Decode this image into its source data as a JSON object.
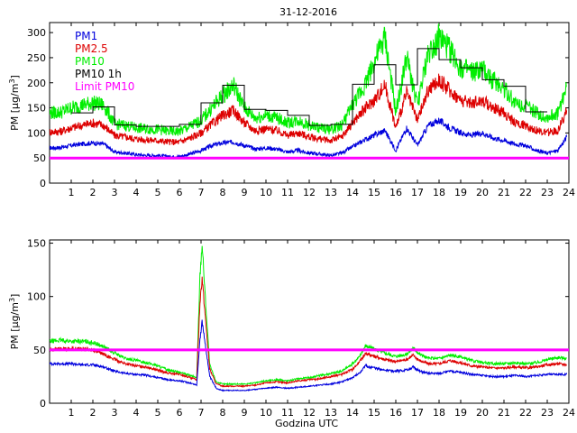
{
  "chart_data": [
    {
      "type": "line",
      "title": "31-12-2016",
      "ylabel": "PM [µg/m",
      "ylabel_sup": "3",
      "ylabel_end": "]",
      "xlabel": "",
      "xlim": [
        0,
        24
      ],
      "ylim": [
        0,
        320
      ],
      "yticks": [
        0,
        50,
        100,
        150,
        200,
        250,
        300
      ],
      "xticks": [
        1,
        2,
        3,
        4,
        5,
        6,
        7,
        8,
        9,
        10,
        11,
        12,
        13,
        14,
        15,
        16,
        17,
        18,
        19,
        20,
        21,
        22,
        23,
        24
      ],
      "legend": [
        {
          "label": "PM1",
          "color": "#0000dd"
        },
        {
          "label": "PM2.5",
          "color": "#dd0000"
        },
        {
          "label": "PM10",
          "color": "#00ee00"
        },
        {
          "label": "PM10 1h",
          "color": "#000000"
        },
        {
          "label": "Limit PM10",
          "color": "#ff00ff"
        }
      ],
      "limit": 50,
      "hourly_pm10": [
        140,
        152,
        116,
        113,
        113,
        117,
        160,
        195,
        147,
        145,
        135,
        115,
        117,
        197,
        236,
        196,
        268,
        246,
        230,
        206,
        193,
        142
      ],
      "series": [
        {
          "name": "PM1",
          "color": "#0000dd",
          "x": [
            0,
            0.5,
            1,
            1.5,
            2,
            2.5,
            3,
            3.5,
            4,
            4.5,
            5,
            5.5,
            6,
            6.5,
            7,
            7.5,
            8,
            8.5,
            9,
            9.5,
            10,
            10.5,
            11,
            11.5,
            12,
            12.5,
            13,
            13.5,
            14,
            14.5,
            15,
            15.5,
            16,
            16.5,
            17,
            17.5,
            18,
            18.5,
            19,
            19.5,
            20,
            20.5,
            21,
            21.5,
            22,
            22.5,
            23,
            23.5,
            23.9
          ],
          "values": [
            70,
            71,
            75,
            78,
            80,
            78,
            62,
            60,
            57,
            55,
            55,
            53,
            53,
            58,
            65,
            75,
            80,
            82,
            75,
            68,
            70,
            68,
            62,
            65,
            60,
            58,
            55,
            60,
            72,
            85,
            95,
            105,
            65,
            110,
            75,
            115,
            125,
            110,
            100,
            95,
            100,
            90,
            85,
            78,
            75,
            65,
            60,
            65,
            92
          ]
        },
        {
          "name": "PM2.5",
          "color": "#dd0000",
          "x": [
            0,
            0.5,
            1,
            1.5,
            2,
            2.5,
            3,
            3.5,
            4,
            4.5,
            5,
            5.5,
            6,
            6.5,
            7,
            7.5,
            8,
            8.5,
            9,
            9.5,
            10,
            10.5,
            11,
            11.5,
            12,
            12.5,
            13,
            13.5,
            14,
            14.5,
            15,
            15.5,
            16,
            16.5,
            17,
            17.5,
            18,
            18.5,
            19,
            19.5,
            20,
            20.5,
            21,
            21.5,
            22,
            22.5,
            23,
            23.5,
            23.9
          ],
          "values": [
            102,
            103,
            110,
            115,
            120,
            115,
            95,
            92,
            88,
            86,
            85,
            82,
            82,
            90,
            100,
            118,
            135,
            145,
            120,
            105,
            108,
            105,
            95,
            100,
            92,
            88,
            85,
            92,
            120,
            145,
            165,
            195,
            110,
            180,
            125,
            185,
            205,
            185,
            165,
            160,
            165,
            150,
            140,
            120,
            115,
            105,
            100,
            105,
            145
          ]
        },
        {
          "name": "PM10",
          "color": "#00ee00",
          "x": [
            0,
            0.5,
            1,
            1.5,
            2,
            2.5,
            3,
            3.5,
            4,
            4.5,
            5,
            5.5,
            6,
            6.5,
            7,
            7.5,
            8,
            8.5,
            9,
            9.5,
            10,
            10.5,
            11,
            11.5,
            12,
            12.5,
            13,
            13.5,
            14,
            14.5,
            15,
            15.5,
            16,
            16.5,
            17,
            17.5,
            18,
            18.5,
            19,
            19.5,
            20,
            20.5,
            21,
            21.5,
            22,
            22.5,
            23,
            23.5,
            23.9
          ],
          "values": [
            140,
            141,
            150,
            155,
            160,
            155,
            118,
            115,
            110,
            108,
            107,
            103,
            103,
            113,
            125,
            150,
            175,
            195,
            150,
            130,
            135,
            130,
            120,
            125,
            115,
            110,
            107,
            115,
            155,
            190,
            240,
            290,
            140,
            250,
            155,
            260,
            290,
            265,
            230,
            220,
            225,
            205,
            190,
            160,
            155,
            140,
            130,
            140,
            192
          ]
        }
      ]
    },
    {
      "type": "line",
      "title": "",
      "ylabel": "PM [µg/m",
      "ylabel_sup": "3",
      "ylabel_end": "]",
      "xlabel": "Godzina UTC",
      "xlim": [
        0,
        24
      ],
      "ylim": [
        0,
        153
      ],
      "yticks": [
        0,
        50,
        100,
        150
      ],
      "xticks": [
        1,
        2,
        3,
        4,
        5,
        6,
        7,
        8,
        9,
        10,
        11,
        12,
        13,
        14,
        15,
        16,
        17,
        18,
        19,
        20,
        21,
        22,
        23,
        24
      ],
      "limit": 50,
      "series": [
        {
          "name": "PM1",
          "color": "#0000dd",
          "x": [
            0,
            0.5,
            1,
            1.5,
            2,
            2.5,
            3,
            3.5,
            4,
            4.5,
            5,
            5.5,
            6,
            6.5,
            6.8,
            6.95,
            7.05,
            7.2,
            7.4,
            7.7,
            8,
            8.5,
            9,
            9.5,
            10,
            10.5,
            11,
            11.5,
            12,
            12.5,
            13,
            13.5,
            14,
            14.3,
            14.6,
            15,
            15.5,
            16,
            16.5,
            16.8,
            17.1,
            17.5,
            18,
            18.5,
            19,
            19.5,
            20,
            20.5,
            21,
            21.5,
            22,
            22.5,
            23,
            23.5,
            23.9
          ],
          "values": [
            37,
            37,
            37,
            36,
            36,
            34,
            30,
            28,
            27,
            26,
            24,
            22,
            21,
            19,
            17,
            60,
            76,
            55,
            25,
            14,
            12,
            12,
            12,
            13,
            14,
            15,
            14,
            15,
            16,
            17,
            18,
            20,
            24,
            28,
            35,
            33,
            31,
            30,
            31,
            34,
            30,
            28,
            28,
            30,
            29,
            27,
            26,
            25,
            25,
            26,
            25,
            26,
            27,
            27,
            27
          ]
        },
        {
          "name": "PM2.5",
          "color": "#dd0000",
          "x": [
            0,
            0.5,
            1,
            1.5,
            2,
            2.5,
            3,
            3.5,
            4,
            4.5,
            5,
            5.5,
            6,
            6.5,
            6.8,
            6.95,
            7.05,
            7.2,
            7.4,
            7.7,
            8,
            8.5,
            9,
            9.5,
            10,
            10.5,
            11,
            11.5,
            12,
            12.5,
            13,
            13.5,
            14,
            14.3,
            14.6,
            15,
            15.5,
            16,
            16.5,
            16.8,
            17.1,
            17.5,
            18,
            18.5,
            19,
            19.5,
            20,
            20.5,
            21,
            21.5,
            22,
            22.5,
            23,
            23.5,
            23.9
          ],
          "values": [
            50,
            51,
            51,
            51,
            50,
            46,
            41,
            37,
            35,
            34,
            31,
            28,
            27,
            24,
            22,
            95,
            118,
            80,
            32,
            18,
            16,
            16,
            16,
            17,
            19,
            20,
            19,
            21,
            22,
            23,
            25,
            27,
            32,
            38,
            47,
            44,
            41,
            39,
            41,
            45,
            40,
            37,
            37,
            40,
            38,
            35,
            34,
            33,
            33,
            34,
            33,
            34,
            36,
            37,
            36
          ]
        },
        {
          "name": "PM10",
          "color": "#00ee00",
          "x": [
            0,
            0.5,
            1,
            1.5,
            2,
            2.5,
            3,
            3.5,
            4,
            4.5,
            5,
            5.5,
            6,
            6.5,
            6.8,
            6.95,
            7.05,
            7.2,
            7.4,
            7.7,
            8,
            8.5,
            9,
            9.5,
            10,
            10.5,
            11,
            11.5,
            12,
            12.5,
            13,
            13.5,
            14,
            14.3,
            14.6,
            15,
            15.5,
            16,
            16.5,
            16.8,
            17.1,
            17.5,
            18,
            18.5,
            19,
            19.5,
            20,
            20.5,
            21,
            21.5,
            22,
            22.5,
            23,
            23.5,
            23.9
          ],
          "values": [
            58,
            59,
            58,
            58,
            57,
            53,
            47,
            42,
            40,
            38,
            35,
            31,
            29,
            26,
            24,
            120,
            150,
            98,
            36,
            20,
            18,
            18,
            18,
            19,
            21,
            22,
            21,
            23,
            24,
            26,
            28,
            30,
            37,
            43,
            54,
            51,
            47,
            44,
            46,
            52,
            46,
            42,
            42,
            45,
            43,
            40,
            38,
            37,
            37,
            38,
            37,
            38,
            41,
            43,
            42
          ]
        }
      ]
    }
  ]
}
